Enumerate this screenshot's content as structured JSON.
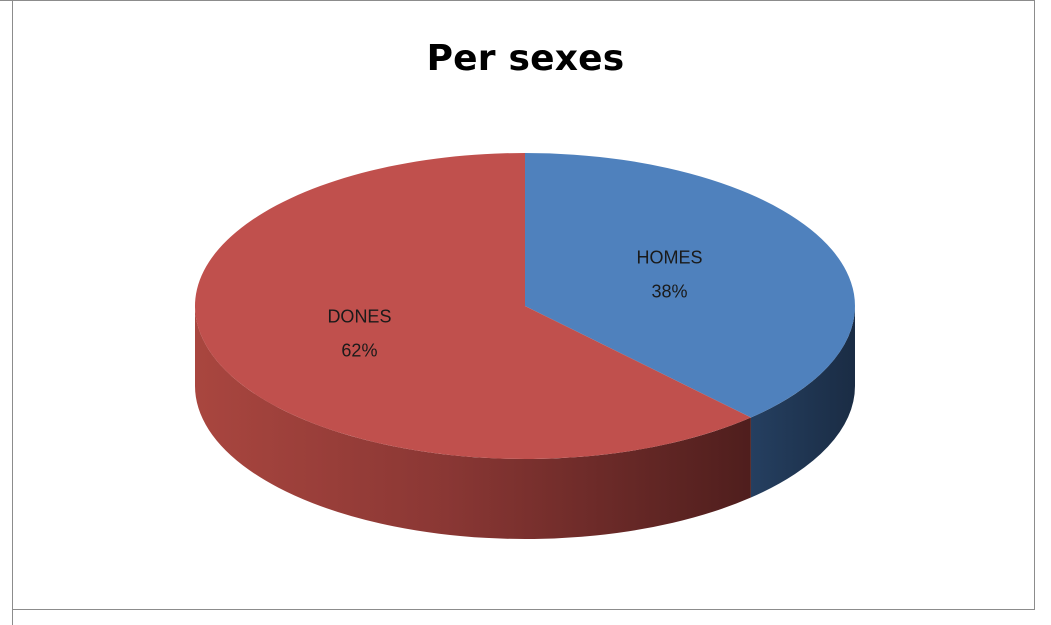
{
  "chart_data": {
    "type": "pie",
    "title": "Per sexes",
    "style": "3d",
    "slices": [
      {
        "label": "HOMES",
        "value": 38,
        "value_label": "38%",
        "color": "#4f81bd",
        "side_color": "#1f3550"
      },
      {
        "label": "DONES",
        "value": 62,
        "value_label": "62%",
        "color": "#c0504d",
        "side_color": "#7a2f2d"
      }
    ],
    "legend": "none"
  }
}
